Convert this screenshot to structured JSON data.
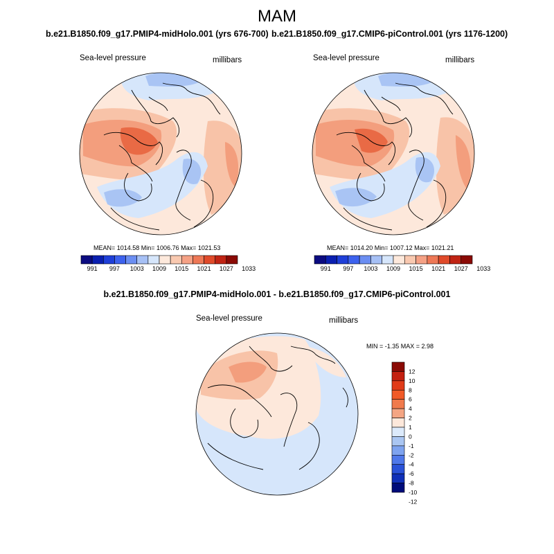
{
  "season_title": "MAM",
  "panels": [
    {
      "title": "b.e21.B1850.f09_g17.PMIP4-midHolo.001 (yrs 676-700)",
      "variable": "Sea-level pressure",
      "units": "millibars",
      "stats": "MEAN= 1014.58  Min= 1006.76  Max= 1021.53"
    },
    {
      "title": "b.e21.B1850.f09_g17.CMIP6-piControl.001 (yrs 1176-1200)",
      "variable": "Sea-level pressure",
      "units": "millibars",
      "stats": "MEAN= 1014.20  Min= 1007.12  Max= 1021.21"
    },
    {
      "title": "b.e21.B1850.f09_g17.PMIP4-midHolo.001 - b.e21.B1850.f09_g17.CMIP6-piControl.001",
      "variable": "Sea-level pressure",
      "units": "millibars",
      "stats": "MIN =  -1.35 MAX =   2.98"
    }
  ],
  "abs_colorbar": {
    "colors": [
      "#0b0b80",
      "#0a1fb0",
      "#1f3fd8",
      "#3d62ee",
      "#6b8ef2",
      "#a6c0f5",
      "#d6e6fb",
      "#fde9dc",
      "#f9c9b0",
      "#f5a185",
      "#ee7856",
      "#e04a2a",
      "#c02414",
      "#8a0a05"
    ],
    "tick_labels": [
      "991",
      "997",
      "1003",
      "1009",
      "1015",
      "1021",
      "1027",
      "1033"
    ]
  },
  "diff_colorbar": {
    "colors": [
      "#8a0a05",
      "#c42010",
      "#e13b19",
      "#f15a28",
      "#f07a4c",
      "#f4a583",
      "#fde8db",
      "#dceafb",
      "#aac6f2",
      "#7ea3ef",
      "#4f78ea",
      "#2a52d8",
      "#1030b8",
      "#000c7a"
    ],
    "tick_labels": [
      "12",
      "10",
      "8",
      "6",
      "4",
      "2",
      "1",
      "0",
      "-1",
      "-2",
      "-4",
      "-6",
      "-8",
      "-10",
      "-12"
    ]
  },
  "field_colors": {
    "high_strong": "#e96a45",
    "high_mid": "#f39e7d",
    "high_weak": "#f8c3a8",
    "neutral_warm": "#fde8db",
    "low_weak": "#d6e6fb",
    "low_mid": "#a9c4f4",
    "coast": "#000000"
  }
}
